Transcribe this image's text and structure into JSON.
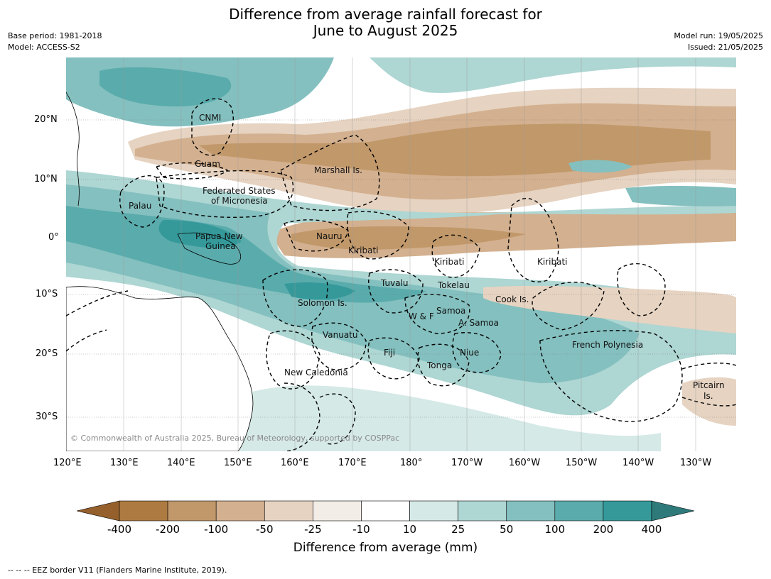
{
  "header": {
    "title_line1": "Difference from average rainfall forecast for",
    "title_line2": "June to August 2025",
    "base_period": "Base period: 1981-2018",
    "model": "Model: ACCESS-S2",
    "model_run": "Model run: 19/05/2025",
    "issued": "Issued: 21/05/2025"
  },
  "map": {
    "lon_ticks": [
      "120°E",
      "130°E",
      "140°E",
      "150°E",
      "160°E",
      "170°E",
      "180°",
      "170°W",
      "160°W",
      "150°W",
      "140°W",
      "130°W"
    ],
    "lat_ticks": [
      "20°N",
      "10°N",
      "0°",
      "10°S",
      "20°S",
      "30°S"
    ],
    "copyright": "© Commonwealth of Australia 2025, Bureau of Meteorology, supported by COSPPac",
    "places": [
      {
        "name": "CNMI"
      },
      {
        "name": "Guam"
      },
      {
        "name": "Marshall Is."
      },
      {
        "name": "Federated States"
      },
      {
        "name": "of Micronesia"
      },
      {
        "name": "Palau"
      },
      {
        "name": "Papua New"
      },
      {
        "name": "Guinea"
      },
      {
        "name": "Nauru"
      },
      {
        "name": "Kiribati"
      },
      {
        "name": "Kiribati"
      },
      {
        "name": "Kiribati"
      },
      {
        "name": "Tuvalu"
      },
      {
        "name": "Tokelau"
      },
      {
        "name": "Cook Is."
      },
      {
        "name": "Solomon Is."
      },
      {
        "name": "Samoa"
      },
      {
        "name": "W & F"
      },
      {
        "name": "A. Samoa"
      },
      {
        "name": "Vanuatu"
      },
      {
        "name": "Fiji"
      },
      {
        "name": "Niue"
      },
      {
        "name": "French Polynesia"
      },
      {
        "name": "Tonga"
      },
      {
        "name": "New Caledonia"
      },
      {
        "name": "Pitcairn"
      },
      {
        "name": "Is."
      }
    ]
  },
  "colorbar": {
    "labels": [
      "-400",
      "-200",
      "-100",
      "-50",
      "-25",
      "-10",
      "10",
      "25",
      "50",
      "100",
      "200",
      "400"
    ],
    "colors": [
      "#95602b",
      "#ad7a42",
      "#c1986a",
      "#d3b08f",
      "#e6d3c1",
      "#f2ede6",
      "#ffffff",
      "#d5e9e7",
      "#aed6d3",
      "#84c0bf",
      "#5aabac",
      "#35999a",
      "#2e7a7a"
    ],
    "title": "Difference from average (mm)"
  },
  "footer": {
    "eez_note": "--  --  -- EEZ border V11 (Flanders Marine Institute, 2019)."
  }
}
